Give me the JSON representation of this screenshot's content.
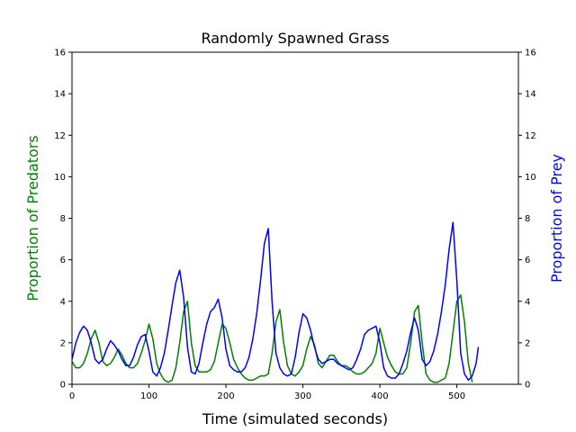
{
  "chart_data": {
    "type": "line",
    "title": "Randomly Spawned Grass",
    "xlabel": "Time (simulated seconds)",
    "ylabel_left": "Proportion of Predators",
    "ylabel_right": "Proportion of Prey",
    "xlim": [
      0,
      580
    ],
    "ylim_left": [
      0,
      16
    ],
    "ylim_right": [
      0,
      16
    ],
    "x_ticks": [
      0,
      100,
      200,
      300,
      400,
      500
    ],
    "y_ticks": [
      0,
      2,
      4,
      6,
      8,
      10,
      12,
      14,
      16
    ],
    "grid": false,
    "colors": {
      "predators": "#008000",
      "prey": "#0000ff"
    },
    "series": [
      {
        "name": "Predators",
        "axis": "left",
        "color": "#008000",
        "x": [
          0,
          5,
          10,
          15,
          20,
          25,
          30,
          35,
          40,
          45,
          50,
          55,
          60,
          65,
          70,
          75,
          80,
          85,
          90,
          95,
          100,
          105,
          110,
          115,
          120,
          125,
          130,
          135,
          140,
          145,
          150,
          155,
          160,
          165,
          170,
          175,
          180,
          185,
          190,
          195,
          200,
          205,
          210,
          215,
          220,
          225,
          230,
          235,
          240,
          245,
          250,
          255,
          260,
          265,
          270,
          275,
          280,
          285,
          290,
          295,
          300,
          305,
          310,
          315,
          320,
          325,
          330,
          335,
          340,
          345,
          350,
          355,
          360,
          365,
          370,
          375,
          380,
          385,
          390,
          395,
          400,
          405,
          410,
          415,
          420,
          425,
          430,
          435,
          440,
          445,
          450,
          455,
          460,
          465,
          470,
          475,
          480,
          485,
          490,
          495,
          500,
          505,
          510,
          515,
          520
        ],
        "values": [
          1.1,
          0.8,
          0.8,
          1.0,
          1.5,
          2.2,
          2.6,
          2.0,
          1.1,
          0.9,
          1.0,
          1.3,
          1.7,
          1.4,
          1.0,
          0.8,
          0.8,
          1.0,
          1.5,
          2.1,
          2.9,
          2.2,
          1.0,
          0.5,
          0.2,
          0.1,
          0.2,
          0.8,
          2.0,
          3.5,
          4.0,
          2.0,
          0.9,
          0.6,
          0.6,
          0.6,
          0.7,
          1.1,
          2.0,
          2.9,
          2.7,
          2.0,
          1.2,
          0.8,
          0.5,
          0.3,
          0.2,
          0.2,
          0.3,
          0.4,
          0.4,
          0.5,
          1.5,
          3.0,
          3.6,
          2.0,
          0.9,
          0.5,
          0.4,
          0.6,
          0.9,
          1.7,
          2.3,
          1.9,
          1.0,
          0.8,
          1.1,
          1.4,
          1.4,
          1.1,
          0.9,
          0.9,
          0.8,
          0.6,
          0.5,
          0.5,
          0.6,
          0.8,
          1.0,
          1.5,
          2.7,
          2.0,
          1.3,
          0.9,
          0.6,
          0.5,
          0.5,
          0.8,
          2.0,
          3.5,
          3.8,
          2.0,
          0.5,
          0.2,
          0.1,
          0.1,
          0.2,
          0.3,
          1.0,
          2.5,
          4.0,
          4.3,
          3.0,
          1.0,
          0.1
        ]
      },
      {
        "name": "Prey",
        "axis": "right",
        "color": "#0000ff",
        "x": [
          0,
          5,
          10,
          15,
          20,
          25,
          30,
          35,
          40,
          45,
          50,
          55,
          60,
          65,
          70,
          75,
          80,
          85,
          90,
          95,
          100,
          105,
          110,
          115,
          120,
          125,
          130,
          135,
          140,
          145,
          150,
          155,
          160,
          165,
          170,
          175,
          180,
          185,
          190,
          195,
          200,
          205,
          210,
          215,
          220,
          225,
          230,
          235,
          240,
          245,
          250,
          255,
          260,
          265,
          270,
          275,
          280,
          285,
          290,
          295,
          300,
          305,
          310,
          315,
          320,
          325,
          330,
          335,
          340,
          345,
          350,
          355,
          360,
          365,
          370,
          375,
          380,
          385,
          390,
          395,
          400,
          405,
          410,
          415,
          420,
          425,
          430,
          435,
          440,
          445,
          450,
          455,
          460,
          465,
          470,
          475,
          480,
          485,
          490,
          495,
          500,
          505,
          510,
          515,
          520,
          525,
          528
        ],
        "values": [
          1.2,
          2.0,
          2.5,
          2.8,
          2.6,
          2.0,
          1.2,
          1.0,
          1.2,
          1.7,
          2.1,
          1.9,
          1.6,
          1.2,
          0.9,
          0.9,
          1.3,
          1.9,
          2.3,
          2.4,
          1.6,
          0.6,
          0.4,
          0.8,
          1.5,
          2.6,
          3.8,
          4.9,
          5.5,
          4.2,
          1.8,
          0.6,
          0.5,
          1.0,
          2.0,
          2.9,
          3.5,
          3.7,
          4.1,
          3.2,
          1.7,
          0.9,
          0.7,
          0.6,
          0.6,
          0.8,
          1.3,
          2.2,
          3.4,
          5.0,
          6.8,
          7.5,
          4.0,
          1.5,
          0.8,
          0.5,
          0.4,
          0.5,
          1.3,
          2.5,
          3.4,
          3.2,
          2.6,
          1.8,
          1.2,
          1.0,
          1.1,
          1.2,
          1.2,
          1.0,
          0.9,
          0.8,
          0.7,
          0.8,
          1.2,
          1.7,
          2.4,
          2.6,
          2.7,
          2.8,
          2.0,
          0.8,
          0.4,
          0.3,
          0.3,
          0.5,
          1.0,
          1.6,
          2.5,
          3.2,
          2.6,
          1.2,
          0.9,
          1.1,
          1.6,
          2.4,
          3.5,
          4.8,
          6.5,
          7.8,
          5.0,
          1.5,
          0.5,
          0.2,
          0.4,
          1.0,
          1.8
        ]
      }
    ]
  }
}
